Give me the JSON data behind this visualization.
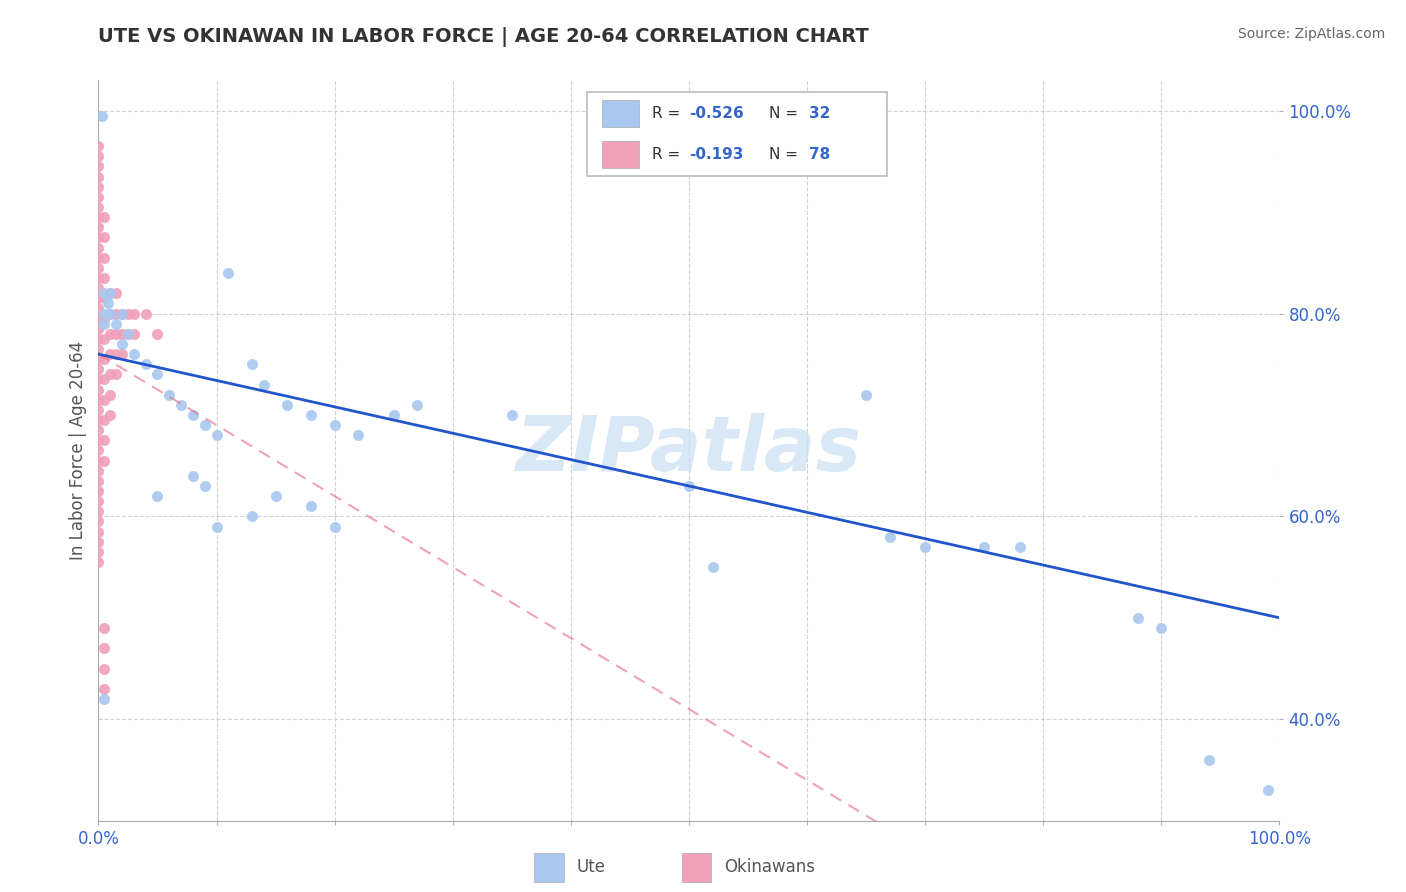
{
  "title": "UTE VS OKINAWAN IN LABOR FORCE | AGE 20-64 CORRELATION CHART",
  "source": "Source: ZipAtlas.com",
  "ylabel": "In Labor Force | Age 20-64",
  "xlim": [
    0.0,
    1.0
  ],
  "ylim": [
    0.3,
    1.03
  ],
  "ute_points": [
    [
      0.003,
      0.995
    ],
    [
      0.005,
      0.82
    ],
    [
      0.005,
      0.8
    ],
    [
      0.005,
      0.79
    ],
    [
      0.008,
      0.81
    ],
    [
      0.01,
      0.82
    ],
    [
      0.01,
      0.8
    ],
    [
      0.015,
      0.79
    ],
    [
      0.02,
      0.8
    ],
    [
      0.02,
      0.77
    ],
    [
      0.025,
      0.78
    ],
    [
      0.03,
      0.76
    ],
    [
      0.04,
      0.75
    ],
    [
      0.05,
      0.74
    ],
    [
      0.06,
      0.72
    ],
    [
      0.07,
      0.71
    ],
    [
      0.08,
      0.7
    ],
    [
      0.09,
      0.69
    ],
    [
      0.1,
      0.68
    ],
    [
      0.11,
      0.84
    ],
    [
      0.13,
      0.75
    ],
    [
      0.14,
      0.73
    ],
    [
      0.16,
      0.71
    ],
    [
      0.18,
      0.7
    ],
    [
      0.2,
      0.69
    ],
    [
      0.22,
      0.68
    ],
    [
      0.25,
      0.7
    ],
    [
      0.27,
      0.71
    ],
    [
      0.35,
      0.7
    ],
    [
      0.5,
      0.63
    ],
    [
      0.52,
      0.55
    ],
    [
      0.65,
      0.72
    ],
    [
      0.67,
      0.58
    ],
    [
      0.7,
      0.57
    ],
    [
      0.75,
      0.57
    ],
    [
      0.78,
      0.57
    ],
    [
      0.88,
      0.5
    ],
    [
      0.9,
      0.49
    ],
    [
      0.94,
      0.36
    ],
    [
      0.99,
      0.33
    ],
    [
      0.05,
      0.62
    ],
    [
      0.08,
      0.64
    ],
    [
      0.1,
      0.59
    ],
    [
      0.13,
      0.6
    ],
    [
      0.15,
      0.62
    ],
    [
      0.18,
      0.61
    ],
    [
      0.2,
      0.59
    ],
    [
      0.09,
      0.63
    ],
    [
      0.005,
      0.42
    ]
  ],
  "okinawan_points": [
    [
      0.0,
      0.965
    ],
    [
      0.0,
      0.955
    ],
    [
      0.0,
      0.945
    ],
    [
      0.0,
      0.935
    ],
    [
      0.0,
      0.925
    ],
    [
      0.0,
      0.915
    ],
    [
      0.0,
      0.905
    ],
    [
      0.0,
      0.895
    ],
    [
      0.0,
      0.885
    ],
    [
      0.0,
      0.875
    ],
    [
      0.0,
      0.865
    ],
    [
      0.0,
      0.855
    ],
    [
      0.0,
      0.845
    ],
    [
      0.0,
      0.835
    ],
    [
      0.0,
      0.825
    ],
    [
      0.0,
      0.815
    ],
    [
      0.0,
      0.805
    ],
    [
      0.0,
      0.795
    ],
    [
      0.0,
      0.785
    ],
    [
      0.0,
      0.775
    ],
    [
      0.0,
      0.765
    ],
    [
      0.0,
      0.755
    ],
    [
      0.0,
      0.745
    ],
    [
      0.0,
      0.735
    ],
    [
      0.0,
      0.725
    ],
    [
      0.0,
      0.715
    ],
    [
      0.0,
      0.705
    ],
    [
      0.0,
      0.695
    ],
    [
      0.0,
      0.685
    ],
    [
      0.0,
      0.675
    ],
    [
      0.0,
      0.665
    ],
    [
      0.0,
      0.655
    ],
    [
      0.0,
      0.645
    ],
    [
      0.0,
      0.635
    ],
    [
      0.0,
      0.625
    ],
    [
      0.0,
      0.615
    ],
    [
      0.0,
      0.605
    ],
    [
      0.0,
      0.595
    ],
    [
      0.0,
      0.585
    ],
    [
      0.0,
      0.575
    ],
    [
      0.0,
      0.565
    ],
    [
      0.0,
      0.555
    ],
    [
      0.005,
      0.895
    ],
    [
      0.005,
      0.875
    ],
    [
      0.005,
      0.855
    ],
    [
      0.005,
      0.835
    ],
    [
      0.005,
      0.815
    ],
    [
      0.005,
      0.795
    ],
    [
      0.005,
      0.775
    ],
    [
      0.005,
      0.755
    ],
    [
      0.005,
      0.735
    ],
    [
      0.005,
      0.715
    ],
    [
      0.005,
      0.695
    ],
    [
      0.005,
      0.675
    ],
    [
      0.005,
      0.655
    ],
    [
      0.01,
      0.82
    ],
    [
      0.01,
      0.8
    ],
    [
      0.01,
      0.78
    ],
    [
      0.01,
      0.76
    ],
    [
      0.01,
      0.74
    ],
    [
      0.01,
      0.72
    ],
    [
      0.01,
      0.7
    ],
    [
      0.015,
      0.82
    ],
    [
      0.015,
      0.8
    ],
    [
      0.015,
      0.78
    ],
    [
      0.015,
      0.76
    ],
    [
      0.015,
      0.74
    ],
    [
      0.02,
      0.8
    ],
    [
      0.02,
      0.78
    ],
    [
      0.02,
      0.76
    ],
    [
      0.025,
      0.8
    ],
    [
      0.025,
      0.78
    ],
    [
      0.03,
      0.8
    ],
    [
      0.03,
      0.78
    ],
    [
      0.04,
      0.8
    ],
    [
      0.05,
      0.78
    ],
    [
      0.005,
      0.49
    ],
    [
      0.005,
      0.47
    ],
    [
      0.005,
      0.45
    ],
    [
      0.005,
      0.43
    ]
  ],
  "ute_color": "#a8c8f0",
  "okinawan_color": "#f0a0b8",
  "ute_line_color": "#2255cc",
  "okinawan_line_color": "#e87090",
  "watermark_color": "#c8dff5",
  "legend_box_color": "#cccccc",
  "text_color": "#3366cc",
  "title_color": "#333333",
  "source_color": "#666666",
  "ylabel_color": "#555555"
}
